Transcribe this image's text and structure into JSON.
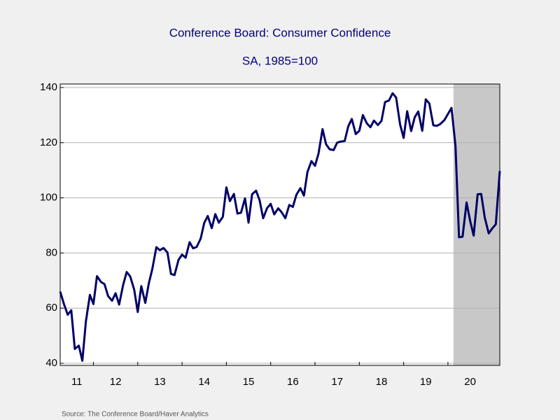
{
  "chart_data": {
    "type": "line",
    "title": "Conference Board: Consumer Confidence",
    "subtitle": "SA, 1985=100",
    "source": "Source:  The Conference Board/Haver Analytics",
    "color": "#000066",
    "shaded_range": [
      2020.125,
      2021.17
    ],
    "shade_color": "#c8c8c8",
    "grid": true,
    "xlim": [
      2011.25,
      2021.17
    ],
    "ylim": [
      40,
      140
    ],
    "yticks": [
      40,
      60,
      80,
      100,
      120,
      140
    ],
    "xticks": [
      {
        "value": 2011,
        "label": "11"
      },
      {
        "value": 2012,
        "label": "12"
      },
      {
        "value": 2013,
        "label": "13"
      },
      {
        "value": 2014,
        "label": "14"
      },
      {
        "value": 2015,
        "label": "15"
      },
      {
        "value": 2016,
        "label": "16"
      },
      {
        "value": 2017,
        "label": "17"
      },
      {
        "value": 2018,
        "label": "18"
      },
      {
        "value": 2019,
        "label": "19"
      },
      {
        "value": 2020,
        "label": "20"
      }
    ],
    "x": [
      2011.25,
      2011.33,
      2011.42,
      2011.5,
      2011.58,
      2011.67,
      2011.75,
      2011.83,
      2011.92,
      2012,
      2012.08,
      2012.17,
      2012.25,
      2012.33,
      2012.42,
      2012.5,
      2012.58,
      2012.67,
      2012.75,
      2012.83,
      2012.92,
      2013,
      2013.08,
      2013.17,
      2013.25,
      2013.33,
      2013.42,
      2013.5,
      2013.58,
      2013.67,
      2013.75,
      2013.83,
      2013.92,
      2014,
      2014.08,
      2014.17,
      2014.25,
      2014.33,
      2014.42,
      2014.5,
      2014.58,
      2014.67,
      2014.75,
      2014.83,
      2014.92,
      2015,
      2015.08,
      2015.17,
      2015.25,
      2015.33,
      2015.42,
      2015.5,
      2015.58,
      2015.67,
      2015.75,
      2015.83,
      2015.92,
      2016,
      2016.08,
      2016.17,
      2016.25,
      2016.33,
      2016.42,
      2016.5,
      2016.58,
      2016.67,
      2016.75,
      2016.83,
      2016.92,
      2017,
      2017.08,
      2017.17,
      2017.25,
      2017.33,
      2017.42,
      2017.5,
      2017.58,
      2017.67,
      2017.75,
      2017.83,
      2017.92,
      2018,
      2018.08,
      2018.17,
      2018.25,
      2018.33,
      2018.42,
      2018.5,
      2018.58,
      2018.67,
      2018.75,
      2018.83,
      2018.92,
      2019,
      2019.08,
      2019.17,
      2019.25,
      2019.33,
      2019.42,
      2019.5,
      2019.58,
      2019.67,
      2019.75,
      2019.83,
      2019.92,
      2020,
      2020.08,
      2020.17,
      2020.25,
      2020.33,
      2020.42,
      2020.5,
      2020.58,
      2020.67,
      2020.75,
      2020.83,
      2020.92,
      2021,
      2021.08,
      2021.17
    ],
    "values": [
      66.0,
      61.7,
      57.6,
      59.2,
      45.2,
      46.4,
      40.9,
      55.2,
      64.8,
      61.5,
      71.6,
      69.5,
      68.7,
      64.4,
      62.7,
      65.4,
      61.3,
      68.4,
      73.1,
      71.5,
      66.7,
      58.6,
      68.0,
      61.9,
      69.0,
      74.3,
      82.1,
      81.0,
      81.8,
      80.2,
      72.4,
      72.0,
      77.5,
      79.4,
      78.3,
      83.9,
      81.7,
      82.2,
      85.2,
      90.9,
      93.4,
      89.0,
      94.1,
      91.0,
      93.1,
      103.8,
      98.8,
      101.4,
      94.3,
      94.6,
      99.8,
      91.0,
      101.3,
      102.6,
      99.1,
      92.6,
      96.3,
      97.8,
      94.0,
      96.2,
      94.7,
      92.6,
      97.4,
      96.7,
      101.1,
      103.5,
      100.8,
      109.4,
      113.3,
      111.6,
      116.1,
      124.9,
      119.4,
      117.6,
      117.3,
      120.0,
      120.4,
      120.6,
      125.9,
      128.6,
      123.1,
      124.3,
      130.0,
      127.0,
      125.6,
      128.0,
      126.4,
      127.9,
      134.7,
      135.3,
      137.9,
      136.4,
      126.6,
      121.7,
      131.4,
      124.2,
      129.2,
      131.3,
      124.3,
      135.7,
      134.2,
      126.3,
      126.1,
      126.8,
      128.2,
      130.4,
      132.6,
      118.8,
      85.7,
      85.9,
      98.3,
      91.7,
      86.3,
      101.3,
      101.4,
      92.9,
      87.1,
      88.9,
      90.4,
      109.7
    ]
  }
}
